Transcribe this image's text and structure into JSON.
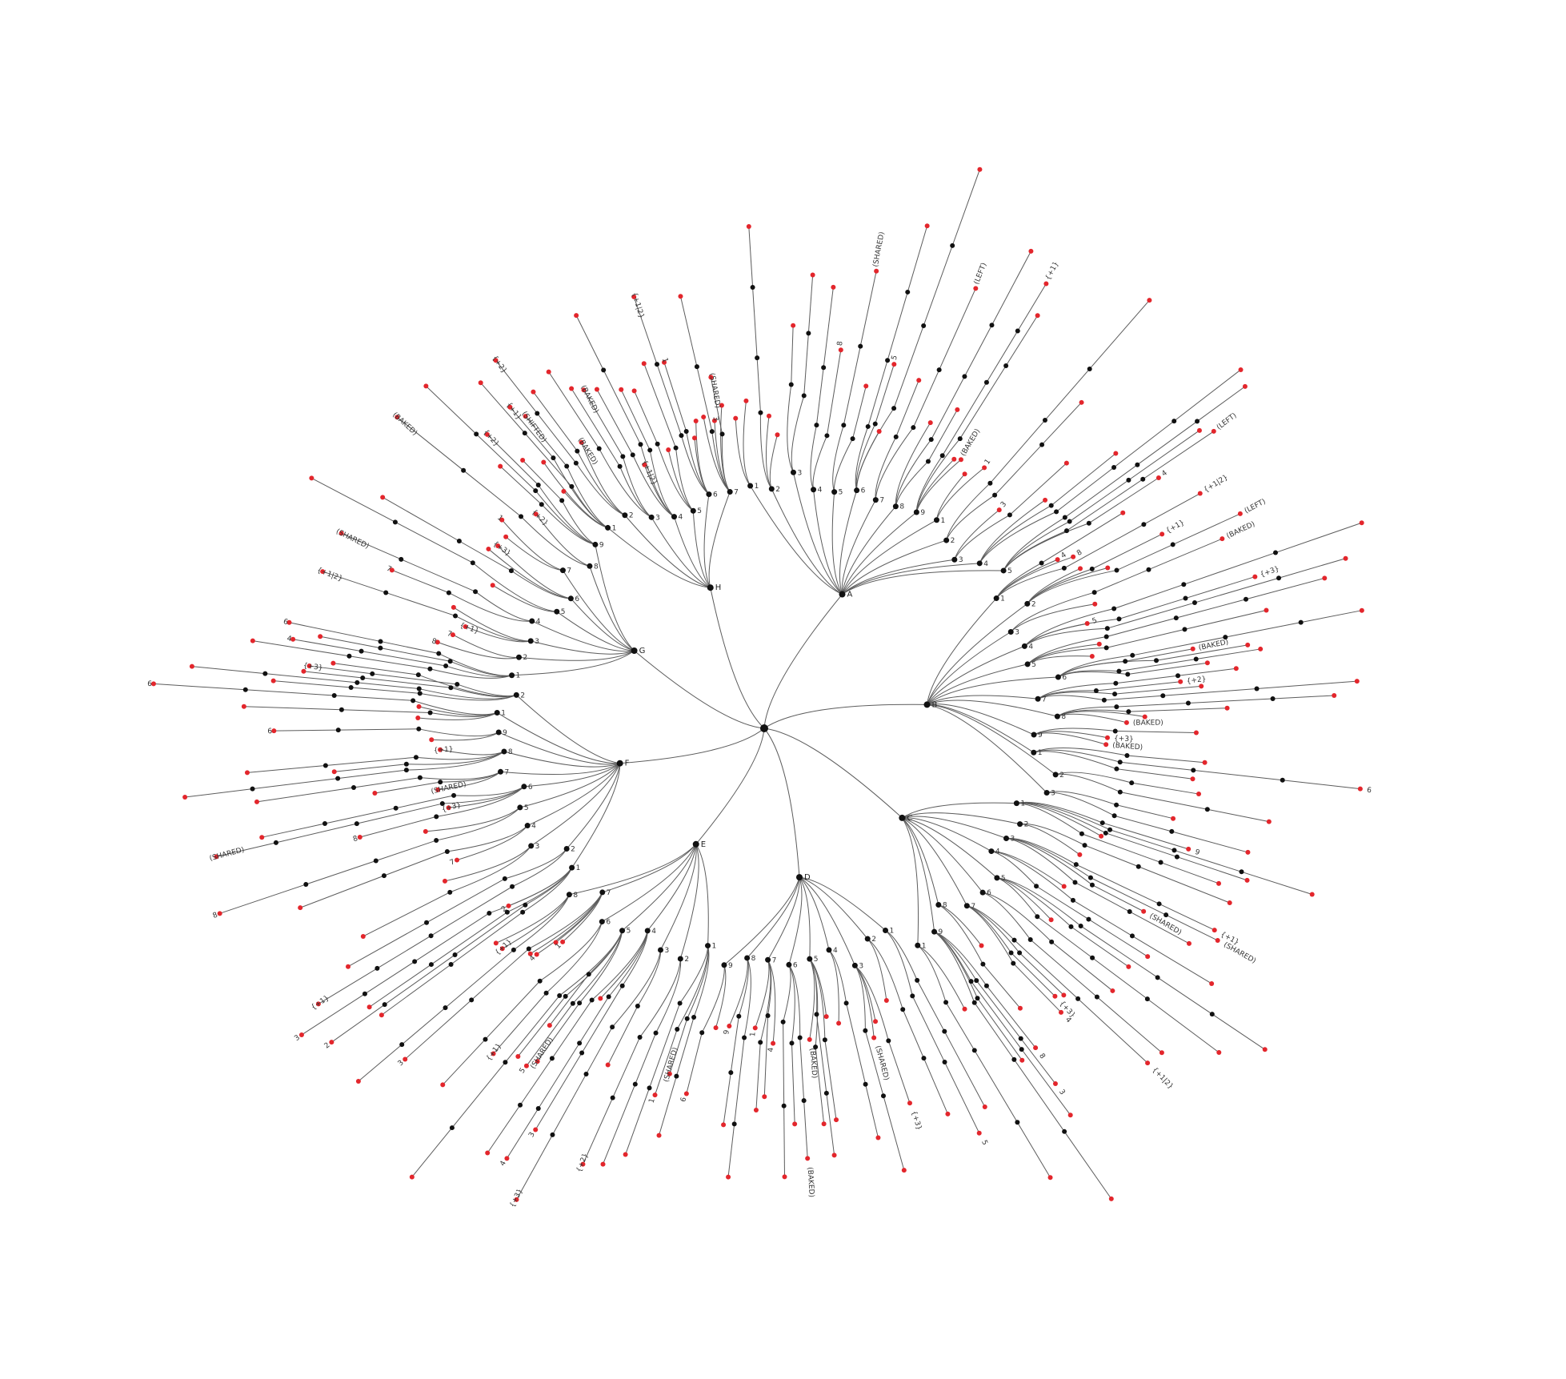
{
  "diagram": {
    "type": "radial-tree",
    "colors": {
      "edge": "#5c5c5c",
      "internal_node": "#111111",
      "leaf_node": "#e3262c",
      "label": "#333333"
    },
    "root_children": [
      {
        "label": "A",
        "children": 14,
        "depth": 4
      },
      {
        "label": "B",
        "children": 12,
        "depth": 4
      },
      {
        "label": "C",
        "children": 10,
        "depth": 4
      },
      {
        "label": "D",
        "children": 9,
        "depth": 3
      },
      {
        "label": "E",
        "children": 8,
        "depth": 4
      },
      {
        "label": "F",
        "children": 11,
        "depth": 4
      },
      {
        "label": "G",
        "children": 9,
        "depth": 3
      },
      {
        "label": "H",
        "children": 7,
        "depth": 3
      }
    ],
    "sample_leaf_labels": [
      "{+1}",
      "{+2}",
      "{+3}",
      "(SHARED)",
      "(SHIFTED)",
      "(BAKED)",
      "(LEFT)",
      "{+1|2}",
      "1",
      "2",
      "3",
      "4",
      "5",
      "6",
      "7",
      "8",
      "9"
    ]
  }
}
